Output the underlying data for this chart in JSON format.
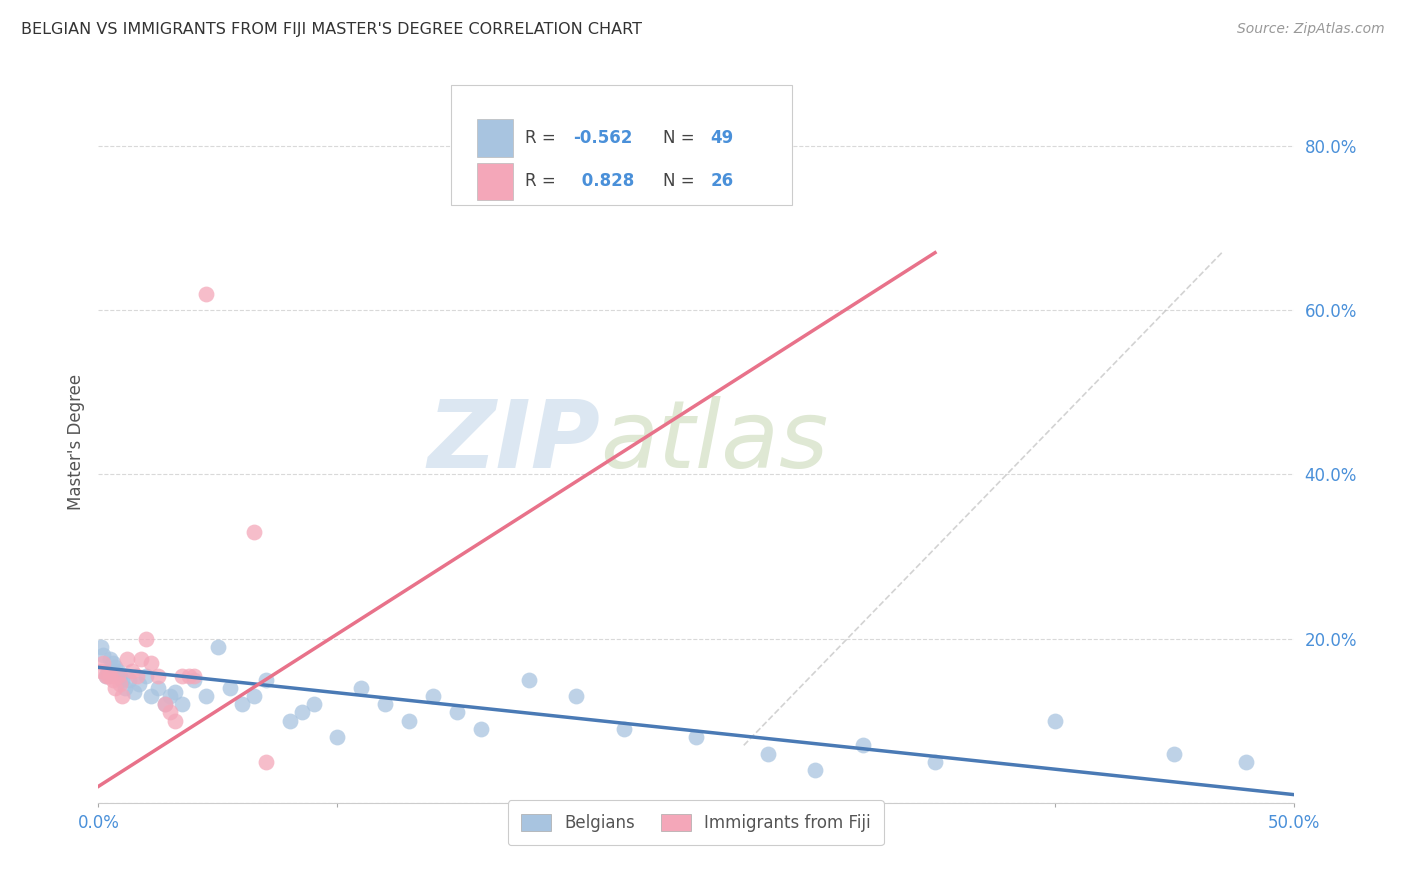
{
  "title": "BELGIAN VS IMMIGRANTS FROM FIJI MASTER'S DEGREE CORRELATION CHART",
  "source": "Source: ZipAtlas.com",
  "ylabel": "Master's Degree",
  "xlim": [
    0.0,
    0.5
  ],
  "ylim": [
    0.0,
    0.88
  ],
  "yticks": [
    0.0,
    0.2,
    0.4,
    0.6,
    0.8
  ],
  "ytick_labels": [
    "",
    "20.0%",
    "40.0%",
    "60.0%",
    "80.0%"
  ],
  "xticks": [
    0.0,
    0.1,
    0.2,
    0.3,
    0.4,
    0.5
  ],
  "xtick_labels": [
    "0.0%",
    "",
    "",
    "",
    "",
    "50.0%"
  ],
  "belgian_R": -0.562,
  "belgian_N": 49,
  "fiji_R": 0.828,
  "fiji_N": 26,
  "belgian_color": "#a8c4e0",
  "fiji_color": "#f4a7b9",
  "belgian_line_color": "#4a7ab5",
  "fiji_line_color": "#e8728a",
  "background_color": "#ffffff",
  "grid_color": "#d5d5d5",
  "title_color": "#333333",
  "axis_tick_color": "#4a90d9",
  "legend_value_color": "#4a90d9",
  "watermark_zip": "ZIP",
  "watermark_atlas": "atlas",
  "belgians_x": [
    0.001,
    0.002,
    0.003,
    0.004,
    0.005,
    0.006,
    0.007,
    0.008,
    0.009,
    0.01,
    0.011,
    0.013,
    0.015,
    0.017,
    0.02,
    0.022,
    0.025,
    0.028,
    0.03,
    0.032,
    0.035,
    0.04,
    0.045,
    0.05,
    0.055,
    0.06,
    0.065,
    0.07,
    0.08,
    0.085,
    0.09,
    0.1,
    0.11,
    0.12,
    0.13,
    0.14,
    0.15,
    0.16,
    0.18,
    0.2,
    0.22,
    0.25,
    0.28,
    0.3,
    0.32,
    0.35,
    0.4,
    0.45,
    0.48
  ],
  "belgians_y": [
    0.19,
    0.18,
    0.155,
    0.16,
    0.175,
    0.17,
    0.165,
    0.16,
    0.155,
    0.15,
    0.14,
    0.15,
    0.135,
    0.145,
    0.155,
    0.13,
    0.14,
    0.12,
    0.13,
    0.135,
    0.12,
    0.15,
    0.13,
    0.19,
    0.14,
    0.12,
    0.13,
    0.15,
    0.1,
    0.11,
    0.12,
    0.08,
    0.14,
    0.12,
    0.1,
    0.13,
    0.11,
    0.09,
    0.15,
    0.13,
    0.09,
    0.08,
    0.06,
    0.04,
    0.07,
    0.05,
    0.1,
    0.06,
    0.05
  ],
  "fiji_x": [
    0.001,
    0.002,
    0.003,
    0.004,
    0.005,
    0.006,
    0.007,
    0.008,
    0.009,
    0.01,
    0.012,
    0.014,
    0.016,
    0.018,
    0.02,
    0.022,
    0.025,
    0.028,
    0.03,
    0.032,
    0.035,
    0.038,
    0.04,
    0.045,
    0.065,
    0.07
  ],
  "fiji_y": [
    0.16,
    0.17,
    0.155,
    0.155,
    0.155,
    0.15,
    0.14,
    0.155,
    0.145,
    0.13,
    0.175,
    0.16,
    0.155,
    0.175,
    0.2,
    0.17,
    0.155,
    0.12,
    0.11,
    0.1,
    0.155,
    0.155,
    0.155,
    0.62,
    0.33,
    0.05
  ]
}
